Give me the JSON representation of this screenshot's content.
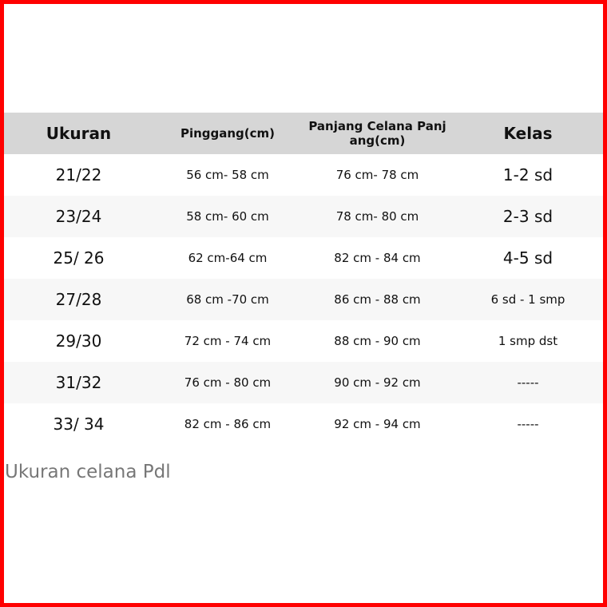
{
  "header": [
    "Ukuran",
    "Pinggang(cm)",
    "Panjang Celana Panj ang(cm)",
    "Kelas"
  ],
  "rows": [
    [
      "21/22",
      "56 cm- 58 cm",
      "76 cm- 78 cm",
      "1-2 sd"
    ],
    [
      "23/24",
      "58 cm- 60 cm",
      "78 cm- 80 cm",
      "2-3 sd"
    ],
    [
      "25/ 26",
      "62 cm-64 cm",
      "82 cm - 84 cm",
      "4-5 sd"
    ],
    [
      "27/28",
      "68 cm -70 cm",
      "86 cm - 88 cm",
      "6 sd - 1 smp"
    ],
    [
      "29/30",
      "72 cm - 74 cm",
      "88 cm - 90 cm",
      "1 smp dst"
    ],
    [
      "31/32",
      "76 cm - 80 cm",
      "90 cm - 92 cm",
      "-----"
    ],
    [
      "33/ 34",
      "82 cm - 86 cm",
      "92 cm - 94 cm",
      "-----"
    ]
  ],
  "caption": "Ukuran celana Pdl",
  "colors": {
    "border": "#ff0000",
    "header_bg": "#d6d6d6",
    "alt_row_bg": "#f7f7f7",
    "caption": "#777777"
  }
}
